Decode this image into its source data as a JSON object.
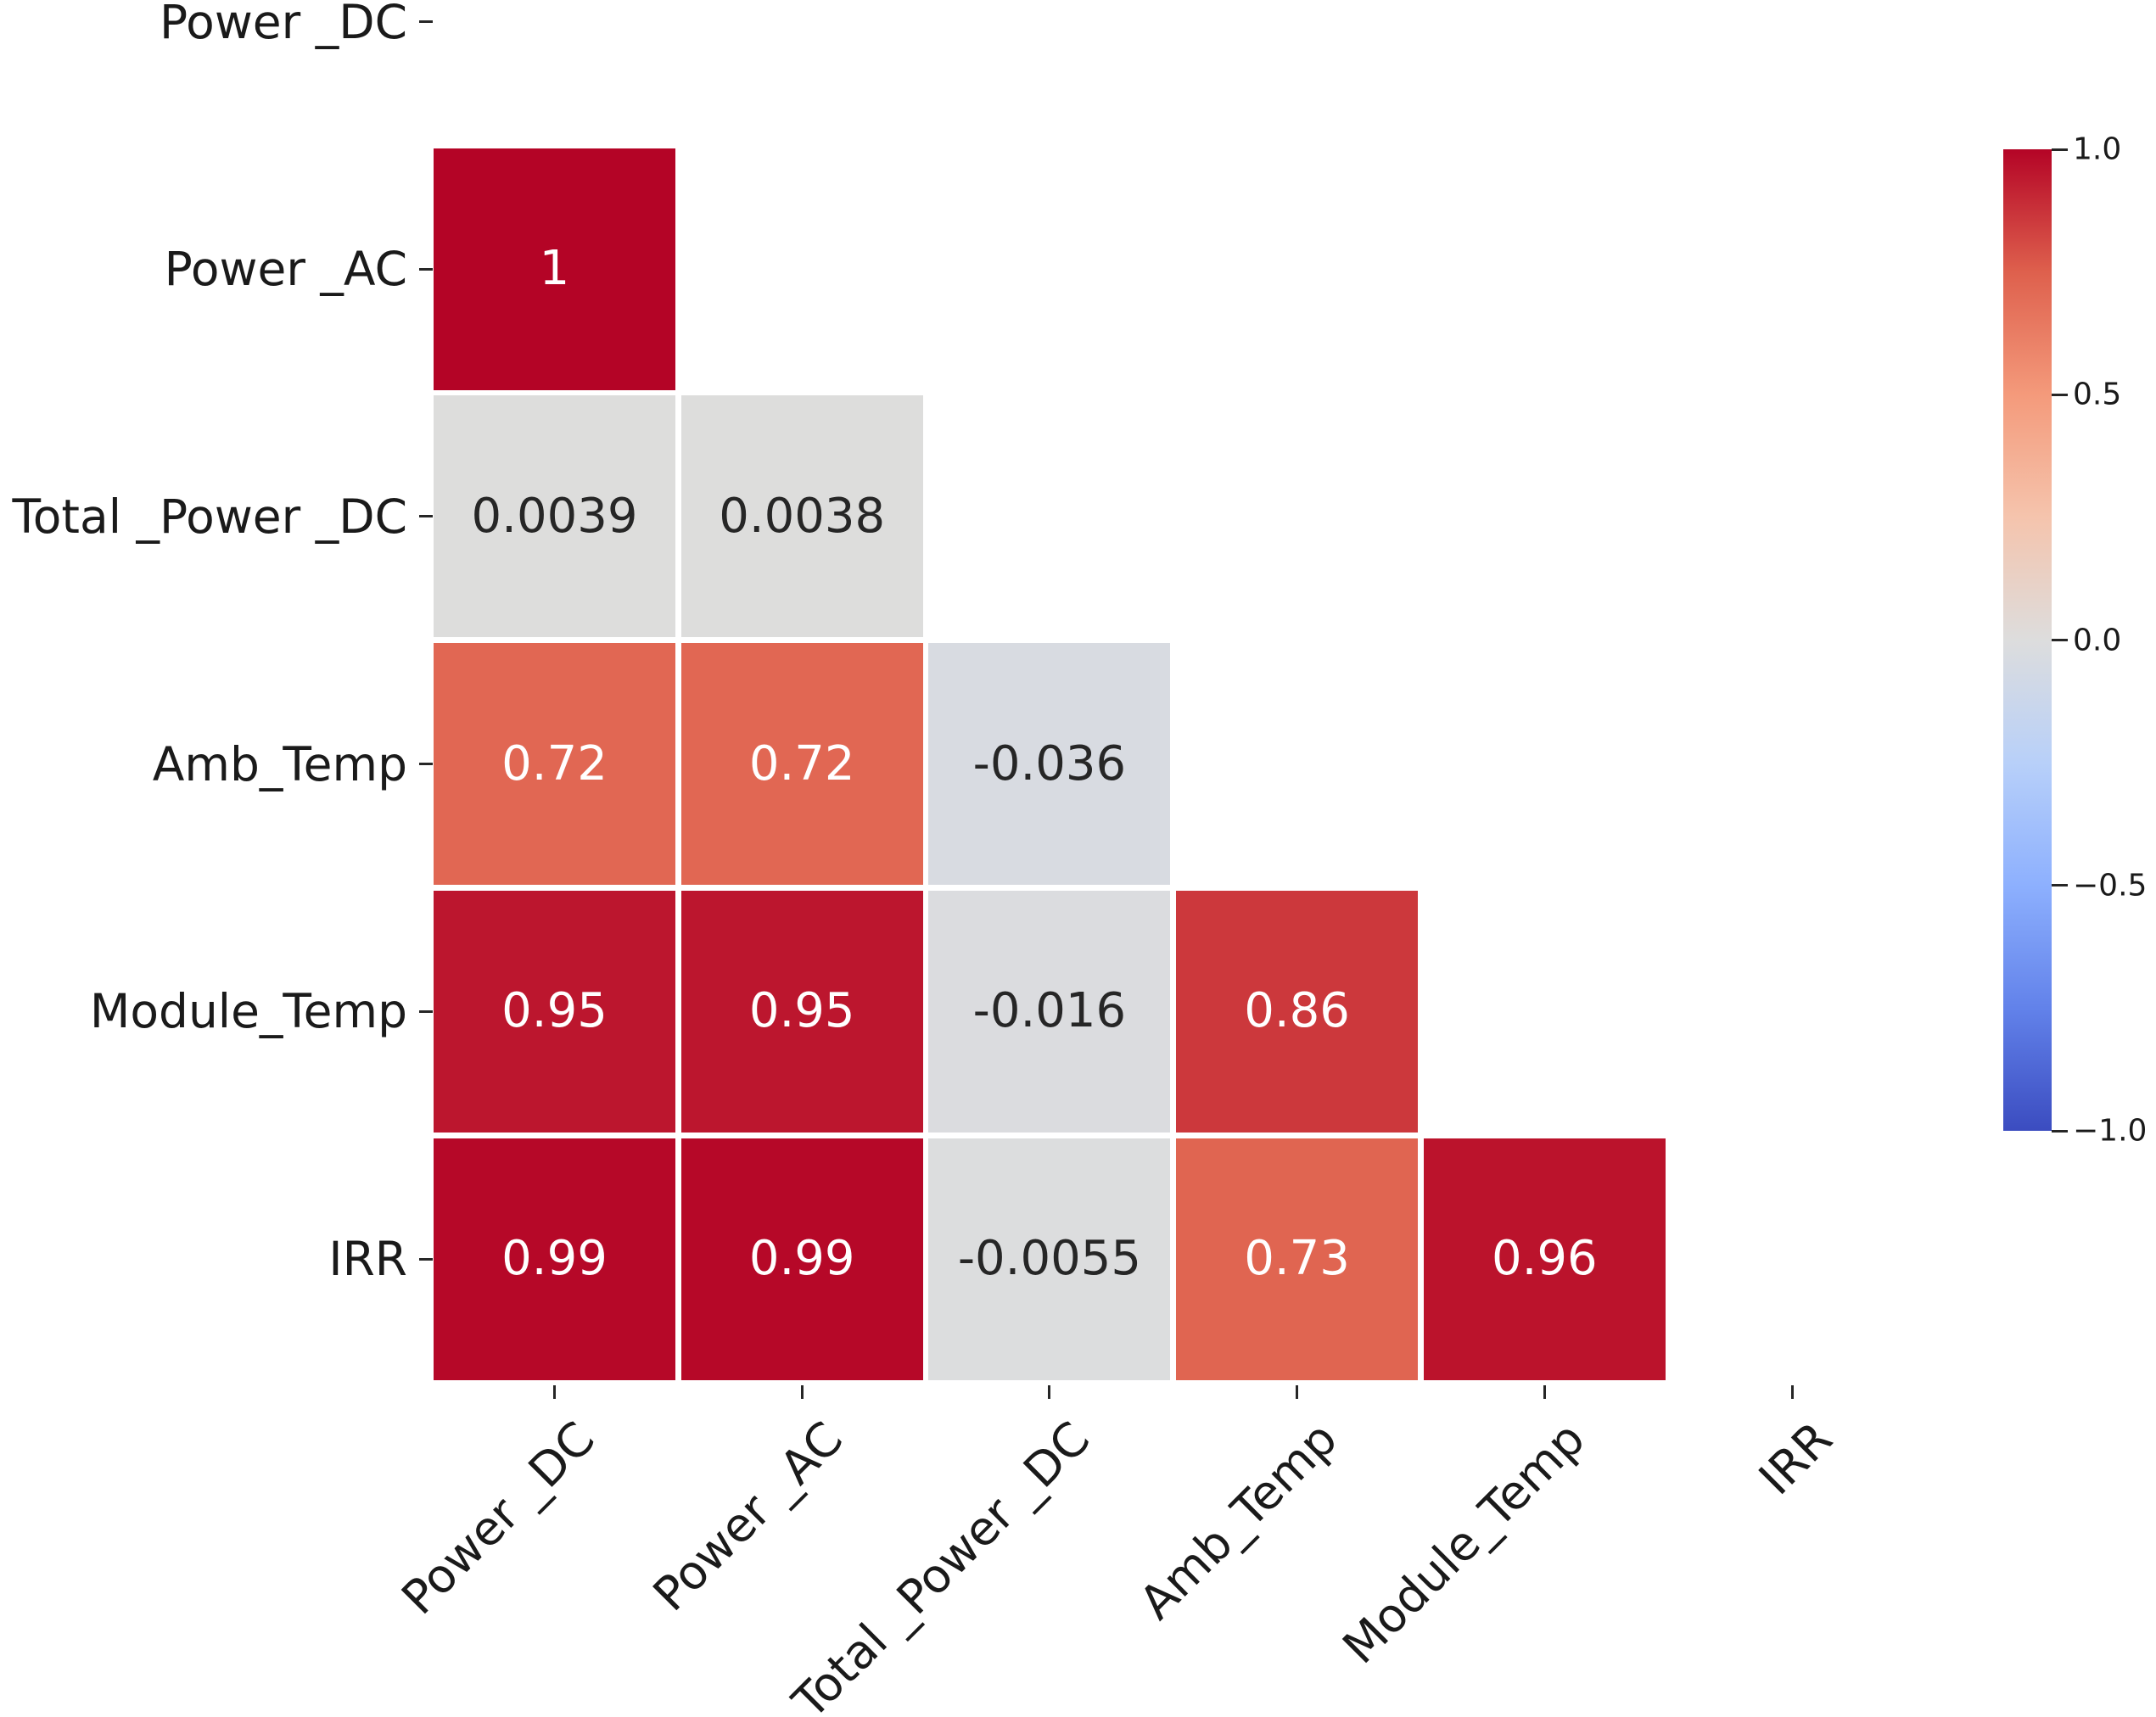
{
  "figure": {
    "background": "#ffffff"
  },
  "chart_data": {
    "type": "heatmap",
    "subtype": "correlation-matrix-lower-triangle",
    "title": "",
    "colormap": "coolwarm",
    "vmin": -1.0,
    "vmax": 1.0,
    "grid": "off",
    "legend": "colorbar-right",
    "variables": [
      "Power _DC",
      "Power _AC",
      "Total _Power _DC",
      "Amb_Temp",
      "Module_Temp",
      "IRR"
    ],
    "y_tick_labels": [
      "Power _DC",
      "Power _AC",
      "Total _Power _DC",
      "Amb_Temp",
      "Module_Temp",
      "IRR"
    ],
    "x_tick_labels": [
      "Power _DC",
      "Power _AC",
      "Total _Power _DC",
      "Amb_Temp",
      "Module_Temp",
      "IRR"
    ],
    "cells": [
      {
        "row": 1,
        "col": 0,
        "value": 1,
        "label": "1"
      },
      {
        "row": 2,
        "col": 0,
        "value": 0.0039,
        "label": "0.0039"
      },
      {
        "row": 2,
        "col": 1,
        "value": 0.0038,
        "label": "0.0038"
      },
      {
        "row": 3,
        "col": 0,
        "value": 0.72,
        "label": "0.72"
      },
      {
        "row": 3,
        "col": 1,
        "value": 0.72,
        "label": "0.72"
      },
      {
        "row": 3,
        "col": 2,
        "value": -0.036,
        "label": "-0.036"
      },
      {
        "row": 4,
        "col": 0,
        "value": 0.95,
        "label": "0.95"
      },
      {
        "row": 4,
        "col": 1,
        "value": 0.95,
        "label": "0.95"
      },
      {
        "row": 4,
        "col": 2,
        "value": -0.016,
        "label": "-0.016"
      },
      {
        "row": 4,
        "col": 3,
        "value": 0.86,
        "label": "0.86"
      },
      {
        "row": 5,
        "col": 0,
        "value": 0.99,
        "label": "0.99"
      },
      {
        "row": 5,
        "col": 1,
        "value": 0.99,
        "label": "0.99"
      },
      {
        "row": 5,
        "col": 2,
        "value": -0.0055,
        "label": "-0.0055"
      },
      {
        "row": 5,
        "col": 3,
        "value": 0.73,
        "label": "0.73"
      },
      {
        "row": 5,
        "col": 4,
        "value": 0.96,
        "label": "0.96"
      }
    ],
    "colorbar": {
      "ticks": [
        {
          "value": 1.0,
          "label": "1.0"
        },
        {
          "value": 0.5,
          "label": "0.5"
        },
        {
          "value": 0.0,
          "label": "0.0"
        },
        {
          "value": -0.5,
          "label": "−0.5"
        },
        {
          "value": -1.0,
          "label": "−1.0"
        }
      ]
    },
    "annotation_text_colors": {
      "dark": "#262626",
      "light": "#ffffff"
    },
    "accent_colors": {
      "max_red": "#b40426",
      "mid_gray": "#dddddd",
      "min_blue": "#3b4cc0"
    }
  }
}
